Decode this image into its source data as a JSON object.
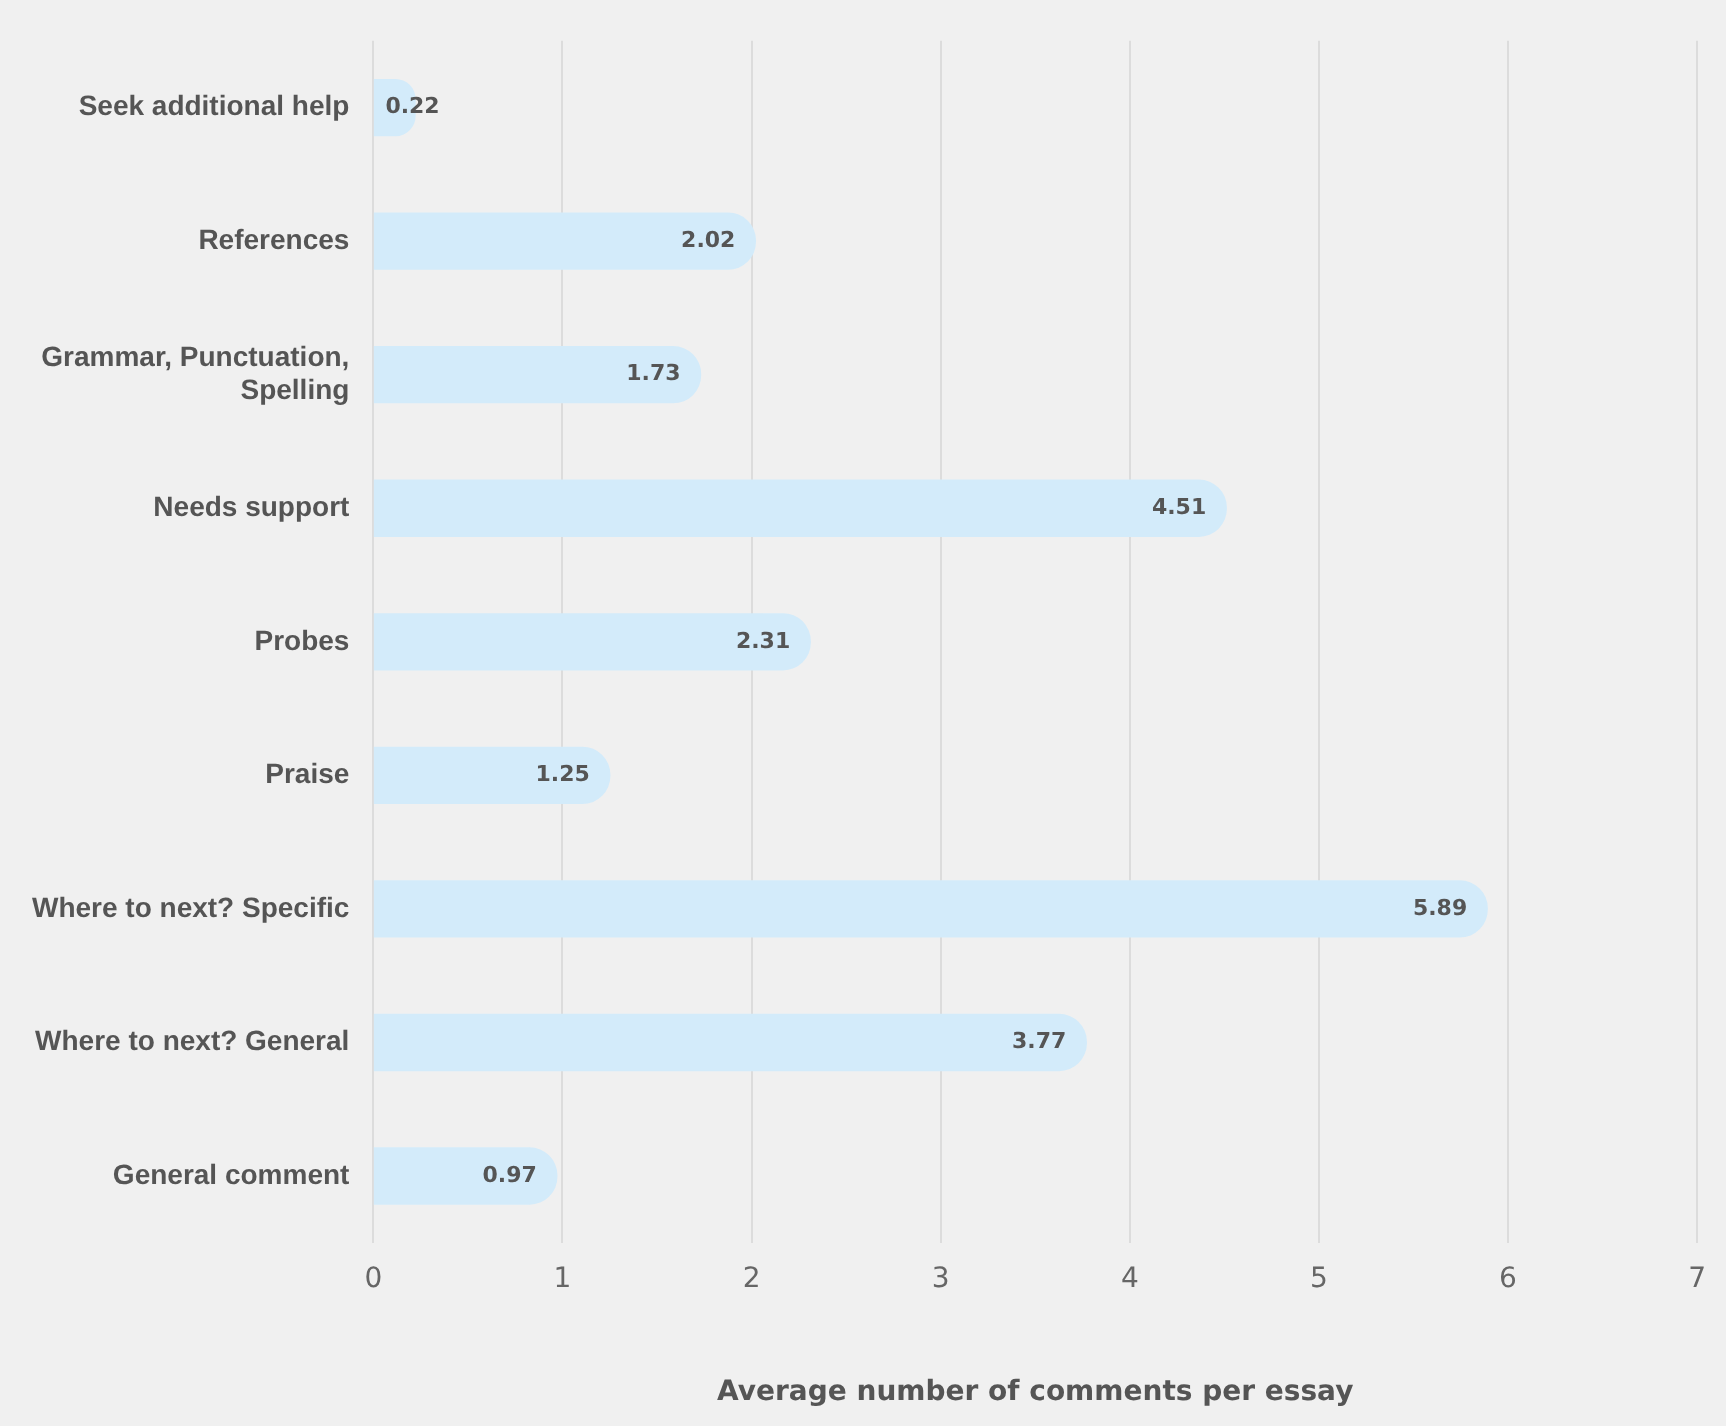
{
  "chart_data": {
    "type": "bar",
    "orientation": "horizontal",
    "xlabel": "Average number of comments per essay",
    "categories": [
      "Seek additional help",
      "References",
      "Grammar, Punctuation, Spelling",
      "Needs support",
      "Probes",
      "Praise",
      "Where to next? Specific",
      "Where to next? General",
      "General comment"
    ],
    "values": [
      0.22,
      2.02,
      1.73,
      4.51,
      2.31,
      1.25,
      5.89,
      3.77,
      0.97
    ],
    "color": "#d3ebfa",
    "xlim": [
      0,
      7
    ],
    "xticks": [
      0,
      1,
      2,
      3,
      4,
      5,
      6,
      7
    ],
    "grid": "x",
    "data_labels": true,
    "legend": false
  }
}
